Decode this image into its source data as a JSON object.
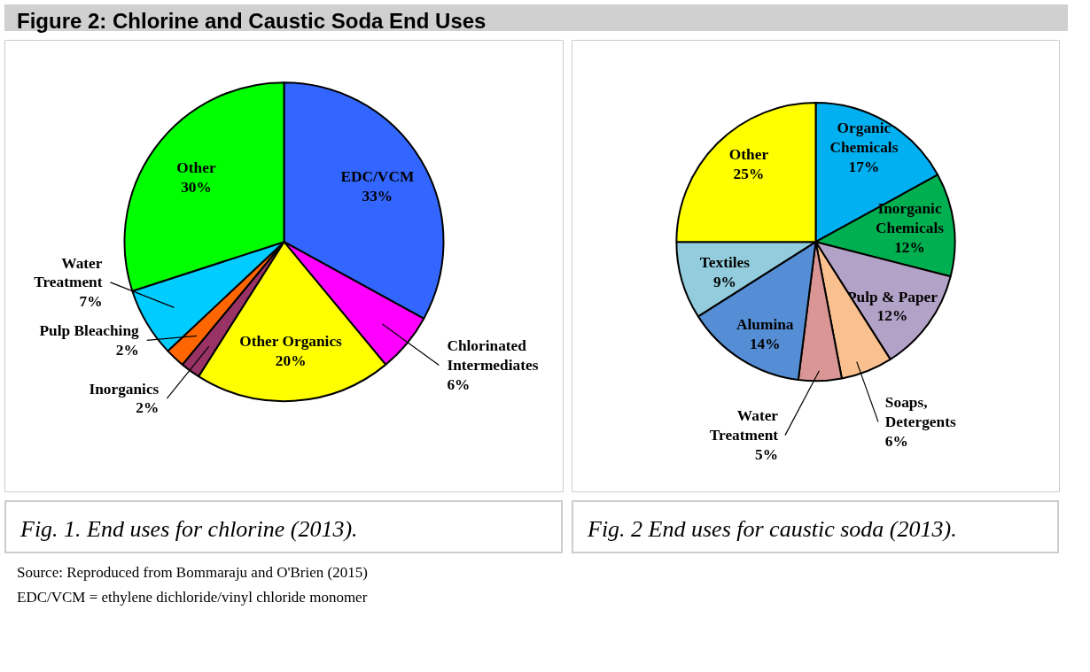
{
  "chart_data": [
    {
      "type": "pie",
      "title": "Fig. 1. End uses for chlorine (2013).",
      "categories": [
        "EDC/VCM",
        "Chlorinated Intermediates",
        "Other Organics",
        "Inorganics",
        "Pulp Bleaching",
        "Water Treatment",
        "Other"
      ],
      "values": [
        33,
        6,
        20,
        2,
        2,
        7,
        30
      ],
      "colors": [
        "#3366ff",
        "#ff00ff",
        "#ffff00",
        "#993366",
        "#ff6600",
        "#00ccff",
        "#00ff00"
      ],
      "value_labels": [
        "33%",
        "6%",
        "20%",
        "2%",
        "2%",
        "7%",
        "30%"
      ],
      "annotations": [
        "Figure 2: Chlorine and Caustic Soda End Uses",
        "Source: Reproduced from Bommaraju and O'Brien (2015)",
        "EDC/VCM = ethylene dichloride/vinyl chloride monomer"
      ]
    },
    {
      "type": "pie",
      "title": "Fig. 2 End uses for caustic soda (2013).",
      "categories": [
        "Organic Chemicals",
        "Inorganic Chemicals",
        "Pulp & Paper",
        "Soaps, Detergents",
        "Water Treatment",
        "Alumina",
        "Textiles",
        "Other"
      ],
      "values": [
        17,
        12,
        12,
        6,
        5,
        14,
        9,
        25
      ],
      "colors": [
        "#00b0f0",
        "#00b050",
        "#b3a2c7",
        "#fac090",
        "#d99694",
        "#558ed5",
        "#93cddd",
        "#ffff00"
      ],
      "value_labels": [
        "17%",
        "12%",
        "12%",
        "6%",
        "5%",
        "14%",
        "9%",
        "25%"
      ]
    }
  ]
}
